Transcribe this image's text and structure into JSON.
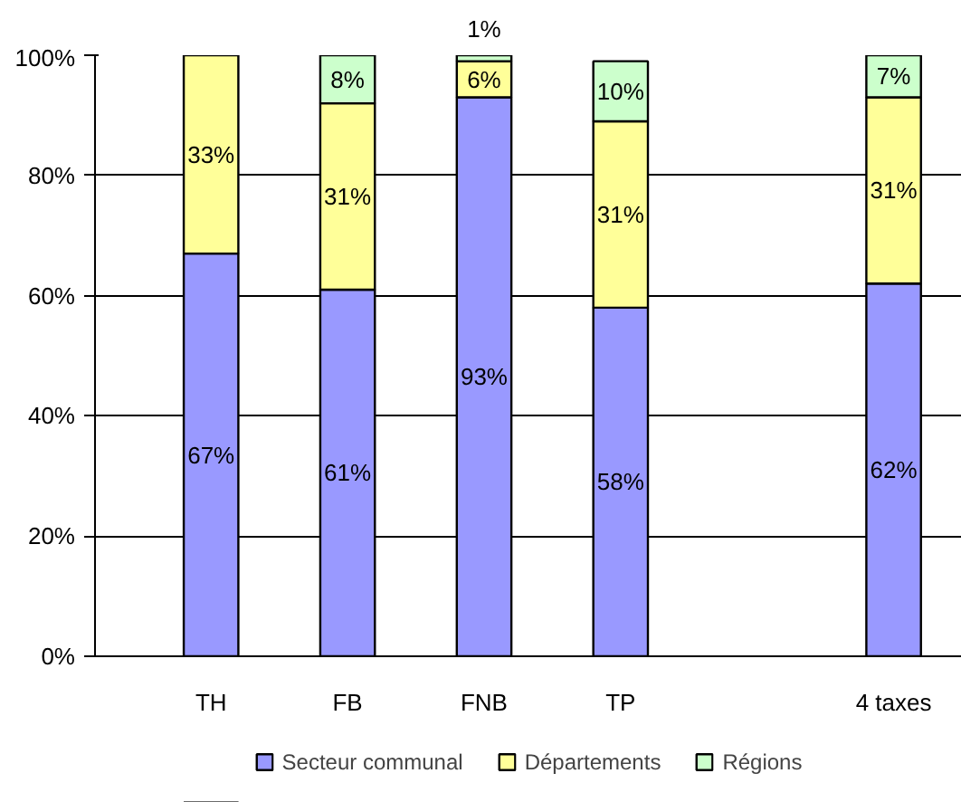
{
  "chart_data": {
    "type": "bar",
    "stacked": true,
    "categories": [
      "TH",
      "FB",
      "FNB",
      "TP",
      null,
      "4 taxes"
    ],
    "series": [
      {
        "name": "Secteur communal",
        "color": "#9999ff",
        "values": [
          67,
          61,
          93,
          58,
          null,
          62
        ],
        "value_labels": [
          "67%",
          "61%",
          "93%",
          "58%",
          null,
          "62%"
        ]
      },
      {
        "name": "Départements",
        "color": "#ffff99",
        "values": [
          33,
          31,
          6,
          31,
          null,
          31
        ],
        "value_labels": [
          "33%",
          "31%",
          "6%",
          "31%",
          null,
          "31%"
        ]
      },
      {
        "name": "Régions",
        "color": "#ccffcc",
        "values": [
          null,
          8,
          1,
          10,
          null,
          7
        ],
        "value_labels": [
          null,
          "8%",
          "1%",
          "10%",
          null,
          "7%"
        ]
      }
    ],
    "ylim": [
      0,
      100
    ],
    "yticks": [
      {
        "value": 0,
        "label": "0%"
      },
      {
        "value": 20,
        "label": "20%"
      },
      {
        "value": 40,
        "label": "40%"
      },
      {
        "value": 60,
        "label": "60%"
      },
      {
        "value": 80,
        "label": "80%"
      },
      {
        "value": 100,
        "label": "100%"
      }
    ],
    "grid": "y",
    "legend": "bottom"
  }
}
